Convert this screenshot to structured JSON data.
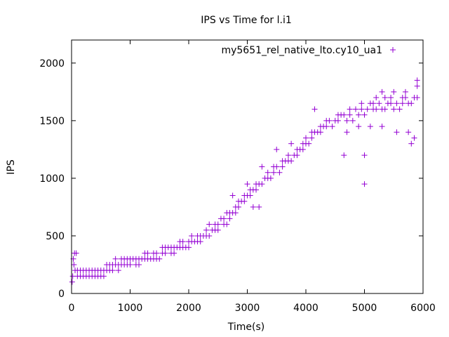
{
  "chart_data": {
    "type": "scatter",
    "title": "IPS vs Time for l.i1",
    "xlabel": "Time(s)",
    "ylabel": "IPS",
    "xlim": [
      0,
      6000
    ],
    "ylim": [
      0,
      2200
    ],
    "xticks": [
      0,
      1000,
      2000,
      3000,
      4000,
      5000,
      6000
    ],
    "yticks": [
      0,
      500,
      1000,
      1500,
      2000
    ],
    "xtick_labels": [
      "0",
      "1000",
      "2000",
      "3000",
      "4000",
      "5000",
      "6000"
    ],
    "ytick_labels": [
      "0",
      "500",
      "1000",
      "1500",
      "2000"
    ],
    "grid": false,
    "legend_position": "top-right",
    "series": [
      {
        "name": "my5651_rel_native_lto.cy10_ua1",
        "color": "#9400d3",
        "marker": "plus",
        "points": [
          [
            10,
            100
          ],
          [
            20,
            150
          ],
          [
            30,
            300
          ],
          [
            40,
            250
          ],
          [
            50,
            350
          ],
          [
            60,
            200
          ],
          [
            80,
            350
          ],
          [
            100,
            150
          ],
          [
            150,
            200
          ],
          [
            200,
            150
          ],
          [
            250,
            200
          ],
          [
            300,
            150
          ],
          [
            350,
            200
          ],
          [
            400,
            150
          ],
          [
            450,
            200
          ],
          [
            500,
            150
          ],
          [
            550,
            150
          ],
          [
            600,
            200
          ],
          [
            650,
            250
          ],
          [
            700,
            200
          ],
          [
            750,
            250
          ],
          [
            800,
            250
          ],
          [
            850,
            250
          ],
          [
            900,
            300
          ],
          [
            950,
            250
          ],
          [
            1000,
            250
          ],
          [
            1050,
            300
          ],
          [
            1100,
            300
          ],
          [
            1150,
            250
          ],
          [
            1200,
            300
          ],
          [
            1250,
            350
          ],
          [
            1300,
            300
          ],
          [
            1350,
            300
          ],
          [
            1400,
            350
          ],
          [
            1450,
            350
          ],
          [
            1500,
            300
          ],
          [
            1550,
            400
          ],
          [
            1600,
            350
          ],
          [
            1650,
            400
          ],
          [
            1700,
            400
          ],
          [
            1750,
            400
          ],
          [
            1800,
            400
          ],
          [
            1850,
            450
          ],
          [
            1900,
            400
          ],
          [
            1950,
            400
          ],
          [
            2000,
            450
          ],
          [
            2050,
            450
          ],
          [
            2100,
            450
          ],
          [
            2150,
            500
          ],
          [
            2200,
            450
          ],
          [
            2250,
            500
          ],
          [
            2300,
            550
          ],
          [
            2350,
            500
          ],
          [
            2400,
            550
          ],
          [
            2450,
            600
          ],
          [
            2500,
            600
          ],
          [
            2550,
            650
          ],
          [
            2600,
            650
          ],
          [
            2650,
            700
          ],
          [
            2700,
            650
          ],
          [
            2750,
            700
          ],
          [
            2800,
            750
          ],
          [
            2850,
            750
          ],
          [
            2900,
            800
          ],
          [
            2950,
            850
          ],
          [
            3000,
            850
          ],
          [
            3050,
            850
          ],
          [
            3100,
            900
          ],
          [
            3150,
            900
          ],
          [
            3200,
            950
          ],
          [
            3250,
            950
          ],
          [
            3300,
            1000
          ],
          [
            3350,
            1000
          ],
          [
            3400,
            1000
          ],
          [
            3450,
            1050
          ],
          [
            3500,
            1100
          ],
          [
            3550,
            1050
          ],
          [
            3600,
            1100
          ],
          [
            3650,
            1150
          ],
          [
            3700,
            1150
          ],
          [
            3750,
            1150
          ],
          [
            3800,
            1200
          ],
          [
            3850,
            1200
          ],
          [
            3900,
            1250
          ],
          [
            3950,
            1250
          ],
          [
            4000,
            1300
          ],
          [
            4050,
            1300
          ],
          [
            4100,
            1350
          ],
          [
            4150,
            1400
          ],
          [
            4200,
            1400
          ],
          [
            4250,
            1400
          ],
          [
            4300,
            1450
          ],
          [
            4350,
            1450
          ],
          [
            4400,
            1500
          ],
          [
            4450,
            1450
          ],
          [
            4500,
            1500
          ],
          [
            4550,
            1500
          ],
          [
            4600,
            1550
          ],
          [
            4650,
            1550
          ],
          [
            4700,
            1500
          ],
          [
            4750,
            1550
          ],
          [
            4800,
            1500
          ],
          [
            4850,
            1600
          ],
          [
            4900,
            1550
          ],
          [
            4950,
            1600
          ],
          [
            5000,
            1550
          ],
          [
            5050,
            1600
          ],
          [
            5100,
            1650
          ],
          [
            5150,
            1600
          ],
          [
            5200,
            1600
          ],
          [
            5250,
            1650
          ],
          [
            5300,
            1600
          ],
          [
            5350,
            1600
          ],
          [
            5400,
            1650
          ],
          [
            5450,
            1650
          ],
          [
            5500,
            1600
          ],
          [
            5550,
            1650
          ],
          [
            5600,
            1600
          ],
          [
            5650,
            1650
          ],
          [
            5700,
            1700
          ],
          [
            5750,
            1650
          ],
          [
            5800,
            1650
          ],
          [
            5850,
            1700
          ],
          [
            5900,
            1700
          ],
          [
            4150,
            1600
          ],
          [
            4650,
            1200
          ],
          [
            5000,
            950
          ],
          [
            5000,
            1200
          ],
          [
            5200,
            1700
          ],
          [
            5300,
            1750
          ],
          [
            5500,
            1750
          ],
          [
            5700,
            1750
          ],
          [
            5900,
            1850
          ],
          [
            5900,
            1800
          ],
          [
            5800,
            1300
          ],
          [
            5850,
            1350
          ],
          [
            5750,
            1400
          ],
          [
            5550,
            1400
          ],
          [
            5300,
            1450
          ],
          [
            5100,
            1450
          ],
          [
            4900,
            1450
          ],
          [
            4700,
            1400
          ],
          [
            3500,
            1250
          ],
          [
            3750,
            1300
          ],
          [
            4000,
            1350
          ],
          [
            3250,
            1100
          ],
          [
            3000,
            950
          ],
          [
            3100,
            750
          ],
          [
            3200,
            750
          ],
          [
            2750,
            850
          ],
          [
            2650,
            600
          ],
          [
            2500,
            550
          ],
          [
            2350,
            600
          ],
          [
            2200,
            500
          ],
          [
            2050,
            500
          ],
          [
            1900,
            450
          ],
          [
            1750,
            350
          ],
          [
            1600,
            400
          ],
          [
            1450,
            300
          ],
          [
            1300,
            350
          ],
          [
            1150,
            300
          ],
          [
            1000,
            300
          ],
          [
            900,
            250
          ],
          [
            850,
            300
          ],
          [
            750,
            300
          ],
          [
            650,
            200
          ],
          [
            550,
            200
          ],
          [
            450,
            150
          ],
          [
            350,
            150
          ],
          [
            250,
            150
          ],
          [
            150,
            150
          ],
          [
            100,
            200
          ],
          [
            5450,
            1700
          ],
          [
            5650,
            1700
          ],
          [
            5350,
            1700
          ],
          [
            5150,
            1650
          ],
          [
            4950,
            1650
          ],
          [
            4750,
            1600
          ],
          [
            4550,
            1550
          ],
          [
            4350,
            1500
          ],
          [
            4250,
            1450
          ],
          [
            4100,
            1400
          ],
          [
            3950,
            1300
          ],
          [
            3850,
            1250
          ],
          [
            3700,
            1200
          ],
          [
            3600,
            1150
          ],
          [
            3450,
            1100
          ],
          [
            3350,
            1050
          ],
          [
            3150,
            950
          ],
          [
            3050,
            900
          ],
          [
            2950,
            800
          ],
          [
            2850,
            800
          ],
          [
            2800,
            700
          ],
          [
            2700,
            700
          ],
          [
            2600,
            600
          ],
          [
            2450,
            550
          ],
          [
            2300,
            500
          ],
          [
            2150,
            450
          ],
          [
            2000,
            400
          ],
          [
            1850,
            400
          ],
          [
            1700,
            350
          ],
          [
            1550,
            350
          ],
          [
            1400,
            300
          ],
          [
            1250,
            300
          ],
          [
            1100,
            250
          ],
          [
            950,
            300
          ],
          [
            800,
            200
          ],
          [
            700,
            250
          ],
          [
            600,
            250
          ],
          [
            500,
            200
          ],
          [
            400,
            200
          ],
          [
            300,
            200
          ],
          [
            200,
            200
          ]
        ]
      }
    ]
  }
}
